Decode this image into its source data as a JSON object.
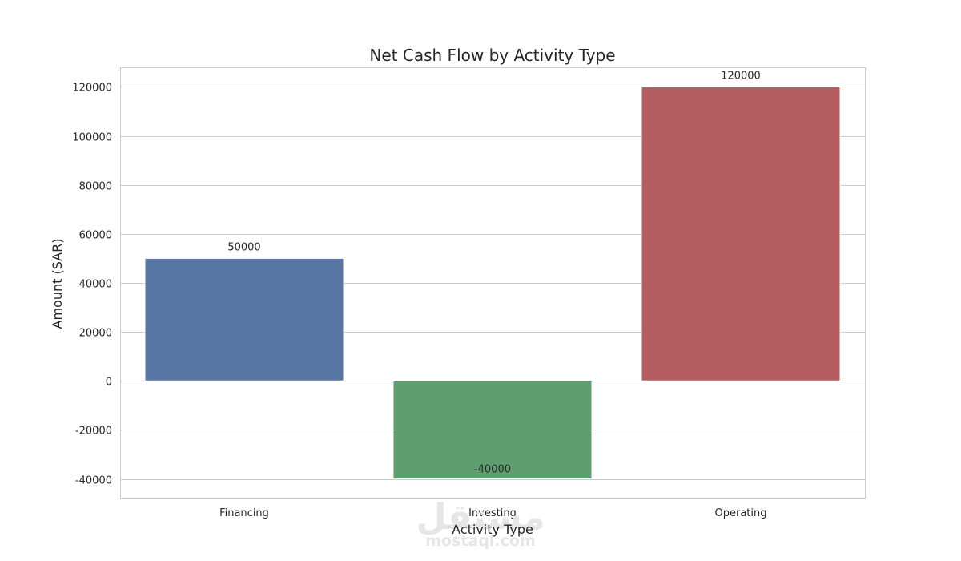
{
  "chart_data": {
    "type": "bar",
    "title": "Net Cash Flow by Activity Type",
    "xlabel": "Activity Type",
    "ylabel": "Amount (SAR)",
    "categories": [
      "Financing",
      "Investing",
      "Operating"
    ],
    "values": [
      50000,
      -40000,
      120000
    ],
    "data_labels": [
      "50000",
      "-40000",
      "120000"
    ],
    "colors": [
      "#5975a4",
      "#5f9e6e",
      "#b55d60"
    ],
    "yticks": [
      -40000,
      -20000,
      0,
      20000,
      40000,
      60000,
      80000,
      100000,
      120000
    ],
    "ylim": [
      -48000,
      128000
    ],
    "grid": true,
    "legend": "none"
  },
  "watermark": {
    "arabic": "مستقل",
    "latin": "mostaql.com"
  }
}
